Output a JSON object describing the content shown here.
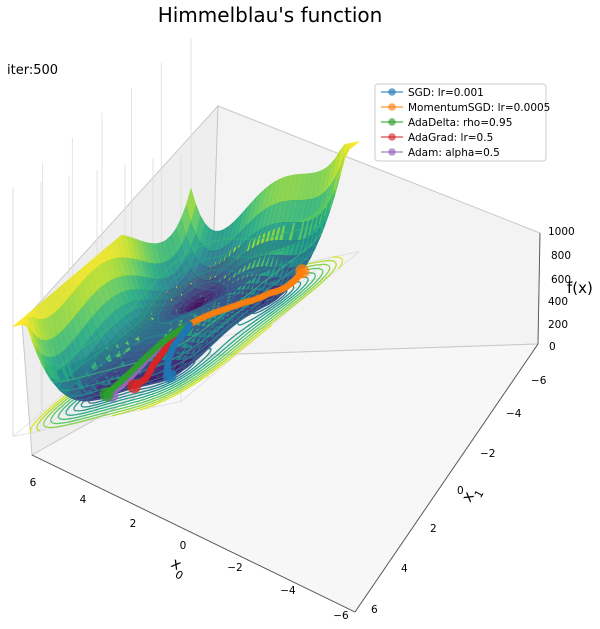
{
  "chart_data": {
    "type": "surface3d",
    "title": "Himmelblau's function",
    "annotation": "iter:500",
    "zlabel": "f(x)",
    "xlabel": "x0",
    "ylabel": "x1",
    "x_ticks": [
      "6",
      "4",
      "2",
      "0",
      "−2",
      "−4",
      "−6"
    ],
    "y_ticks": [
      "−6",
      "−4",
      "−2",
      "0",
      "2",
      "4",
      "6"
    ],
    "z_ticks": [
      "1000",
      "800",
      "600",
      "400",
      "200",
      "0"
    ],
    "xlim": [
      -6,
      6
    ],
    "ylim": [
      -6,
      6
    ],
    "zlim": [
      0,
      1000
    ],
    "colormap": "viridis",
    "minima": [
      [
        3.0,
        2.0
      ],
      [
        -2.805,
        3.131
      ],
      [
        -3.779,
        -3.283
      ],
      [
        3.584,
        -1.848
      ]
    ],
    "legend_position": "upper right",
    "series": [
      {
        "name": "SGD: lr=0.001",
        "color": "#1f77b4",
        "path": [
          [
            -0.05,
            0.2
          ],
          [
            0.6,
            0.4
          ],
          [
            1.3,
            0.45
          ],
          [
            2.0,
            0.85
          ],
          [
            2.6,
            1.4
          ],
          [
            2.9,
            1.8
          ],
          [
            3.0,
            2.0
          ]
        ]
      },
      {
        "name": "MomentumSGD: lr=0.0005",
        "color": "#ff7f0e",
        "path": [
          [
            -0.05,
            0.2
          ],
          [
            -1.2,
            0.9
          ],
          [
            -2.4,
            1.6
          ],
          [
            -3.3,
            2.5
          ],
          [
            -3.6,
            3.6
          ],
          [
            -3.75,
            4.2
          ],
          [
            -3.78,
            4.3
          ]
        ]
      },
      {
        "name": "AdaDelta: rho=0.95",
        "color": "#2ca02c",
        "path": [
          [
            -0.05,
            0.2
          ],
          [
            0.7,
            -0.4
          ],
          [
            1.6,
            -1.0
          ],
          [
            2.5,
            -1.5
          ],
          [
            3.3,
            -1.9
          ],
          [
            3.6,
            -1.85
          ]
        ]
      },
      {
        "name": "AdaGrad: lr=0.5",
        "color": "#d62728",
        "path": [
          [
            -0.05,
            0.2
          ],
          [
            0.6,
            -0.1
          ],
          [
            1.4,
            0.0
          ],
          [
            2.2,
            0.0
          ],
          [
            3.0,
            0.3
          ],
          [
            3.5,
            0.0
          ]
        ]
      },
      {
        "name": "Adam: alpha=0.5",
        "color": "#9467bd",
        "path": [
          [
            -0.05,
            0.2
          ],
          [
            0.8,
            -0.3
          ],
          [
            1.7,
            -0.8
          ],
          [
            2.6,
            -1.1
          ],
          [
            3.2,
            -1.3
          ],
          [
            3.6,
            -1.8
          ],
          [
            3.9,
            -1.2
          ]
        ]
      }
    ]
  }
}
